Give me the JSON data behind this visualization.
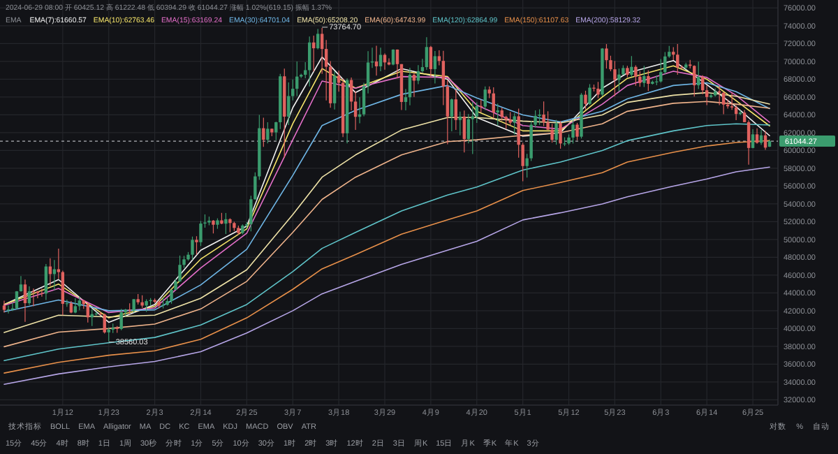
{
  "chart_data": {
    "type": "candlestick",
    "legend_title": "EMA",
    "legend": "top left",
    "grid": true,
    "xlim": [
      "2023-12-28",
      "2024-07-01"
    ],
    "ylim": [
      31400,
      76900
    ],
    "xticks": [
      {
        "value": "2024-01-12",
        "label": "1月12"
      },
      {
        "value": "2024-01-23",
        "label": "1月23"
      },
      {
        "value": "2024-02-03",
        "label": "2月3"
      },
      {
        "value": "2024-02-14",
        "label": "2月14"
      },
      {
        "value": "2024-02-25",
        "label": "2月25"
      },
      {
        "value": "2024-03-07",
        "label": "3月7"
      },
      {
        "value": "2024-03-18",
        "label": "3月18"
      },
      {
        "value": "2024-03-29",
        "label": "3月29"
      },
      {
        "value": "2024-04-09",
        "label": "4月9"
      },
      {
        "value": "2024-04-20",
        "label": "4月20"
      },
      {
        "value": "2024-05-01",
        "label": "5月1"
      },
      {
        "value": "2024-05-12",
        "label": "5月12"
      },
      {
        "value": "2024-05-23",
        "label": "5月23"
      },
      {
        "value": "2024-06-03",
        "label": "6月3"
      },
      {
        "value": "2024-06-14",
        "label": "6月14"
      },
      {
        "value": "2024-06-25",
        "label": "6月25"
      }
    ],
    "yticks": [
      {
        "value": 32000,
        "label": "32000.00"
      },
      {
        "value": 34000,
        "label": "34000.00"
      },
      {
        "value": 36000,
        "label": "36000.00"
      },
      {
        "value": 38000,
        "label": "38000.00"
      },
      {
        "value": 40000,
        "label": "40000.00"
      },
      {
        "value": 42000,
        "label": "42000.00"
      },
      {
        "value": 44000,
        "label": "44000.00"
      },
      {
        "value": 46000,
        "label": "46000.00"
      },
      {
        "value": 48000,
        "label": "48000.00"
      },
      {
        "value": 50000,
        "label": "50000.00"
      },
      {
        "value": 52000,
        "label": "52000.00"
      },
      {
        "value": 54000,
        "label": "54000.00"
      },
      {
        "value": 56000,
        "label": "56000.00"
      },
      {
        "value": 58000,
        "label": "58000.00"
      },
      {
        "value": 60000,
        "label": "60000.00"
      },
      {
        "value": 62000,
        "label": "62000.00"
      },
      {
        "value": 64000,
        "label": "64000.00"
      },
      {
        "value": 66000,
        "label": "66000.00"
      },
      {
        "value": 68000,
        "label": "68000.00"
      },
      {
        "value": 70000,
        "label": "70000.00"
      },
      {
        "value": 72000,
        "label": "72000.00"
      },
      {
        "value": 74000,
        "label": "74000.00"
      },
      {
        "value": 76000,
        "label": "76000.00"
      }
    ],
    "ref_lines": [
      {
        "axis": "y",
        "value": 61044.27,
        "label": "61044.27",
        "color": "#b0b3b8",
        "line_style": "dashed"
      }
    ],
    "annotations": [
      "2024-06-29 08:00  开 60425.12  高 61222.48  低 60394.29  收 61044.27  涨幅 1.02%(619.15)  振幅 1.37%",
      "技术指标",
      "BOLL",
      "EMA",
      "Alligator",
      "MA",
      "DC",
      "KC",
      "EMA",
      "KDJ",
      "MACD",
      "OBV",
      "ATR",
      "对数",
      "%",
      "自动",
      "15分",
      "45分",
      "4时",
      "8时",
      "1日",
      "1周",
      "30秒",
      "分时",
      "1分",
      "5分",
      "10分",
      "30分",
      "1时",
      "2时",
      "3时",
      "12时",
      "2日",
      "3日",
      "周K",
      "15日",
      "月K",
      "季K",
      "年K",
      "3分",
      {
        "text": "73764.70",
        "x": "2024-03-14",
        "y": 73764.7
      },
      {
        "text": "38560.03",
        "x": "2024-01-23",
        "y": 38560.03
      }
    ],
    "x": [
      "2023-12-29",
      "2023-12-30",
      "2023-12-31",
      "2024-01-01",
      "2024-01-02",
      "2024-01-03",
      "2024-01-04",
      "2024-01-05",
      "2024-01-06",
      "2024-01-07",
      "2024-01-08",
      "2024-01-09",
      "2024-01-10",
      "2024-01-11",
      "2024-01-12",
      "2024-01-13",
      "2024-01-14",
      "2024-01-15",
      "2024-01-16",
      "2024-01-17",
      "2024-01-18",
      "2024-01-19",
      "2024-01-20",
      "2024-01-21",
      "2024-01-22",
      "2024-01-23",
      "2024-01-24",
      "2024-01-25",
      "2024-01-26",
      "2024-01-27",
      "2024-01-28",
      "2024-01-29",
      "2024-01-30",
      "2024-01-31",
      "2024-02-01",
      "2024-02-02",
      "2024-02-03",
      "2024-02-04",
      "2024-02-05",
      "2024-02-06",
      "2024-02-07",
      "2024-02-08",
      "2024-02-09",
      "2024-02-10",
      "2024-02-11",
      "2024-02-12",
      "2024-02-13",
      "2024-02-14",
      "2024-02-15",
      "2024-02-16",
      "2024-02-17",
      "2024-02-18",
      "2024-02-19",
      "2024-02-20",
      "2024-02-21",
      "2024-02-22",
      "2024-02-23",
      "2024-02-24",
      "2024-02-25",
      "2024-02-26",
      "2024-02-27",
      "2024-02-28",
      "2024-02-29",
      "2024-03-01",
      "2024-03-02",
      "2024-03-03",
      "2024-03-04",
      "2024-03-05",
      "2024-03-06",
      "2024-03-07",
      "2024-03-08",
      "2024-03-09",
      "2024-03-10",
      "2024-03-11",
      "2024-03-12",
      "2024-03-13",
      "2024-03-14",
      "2024-03-15",
      "2024-03-16",
      "2024-03-17",
      "2024-03-18",
      "2024-03-19",
      "2024-03-20",
      "2024-03-21",
      "2024-03-22",
      "2024-03-23",
      "2024-03-24",
      "2024-03-25",
      "2024-03-26",
      "2024-03-27",
      "2024-03-28",
      "2024-03-29",
      "2024-03-30",
      "2024-03-31",
      "2024-04-01",
      "2024-04-02",
      "2024-04-03",
      "2024-04-04",
      "2024-04-05",
      "2024-04-06",
      "2024-04-07",
      "2024-04-08",
      "2024-04-09",
      "2024-04-10",
      "2024-04-11",
      "2024-04-12",
      "2024-04-13",
      "2024-04-14",
      "2024-04-15",
      "2024-04-16",
      "2024-04-17",
      "2024-04-18",
      "2024-04-19",
      "2024-04-20",
      "2024-04-21",
      "2024-04-22",
      "2024-04-23",
      "2024-04-24",
      "2024-04-25",
      "2024-04-26",
      "2024-04-27",
      "2024-04-28",
      "2024-04-29",
      "2024-04-30",
      "2024-05-01",
      "2024-05-02",
      "2024-05-03",
      "2024-05-04",
      "2024-05-05",
      "2024-05-06",
      "2024-05-07",
      "2024-05-08",
      "2024-05-09",
      "2024-05-10",
      "2024-05-11",
      "2024-05-12",
      "2024-05-13",
      "2024-05-14",
      "2024-05-15",
      "2024-05-16",
      "2024-05-17",
      "2024-05-18",
      "2024-05-19",
      "2024-05-20",
      "2024-05-21",
      "2024-05-22",
      "2024-05-23",
      "2024-05-24",
      "2024-05-25",
      "2024-05-26",
      "2024-05-27",
      "2024-05-28",
      "2024-05-29",
      "2024-05-30",
      "2024-05-31",
      "2024-06-01",
      "2024-06-02",
      "2024-06-03",
      "2024-06-04",
      "2024-06-05",
      "2024-06-06",
      "2024-06-07",
      "2024-06-08",
      "2024-06-09",
      "2024-06-10",
      "2024-06-11",
      "2024-06-12",
      "2024-06-13",
      "2024-06-14",
      "2024-06-15",
      "2024-06-16",
      "2024-06-17",
      "2024-06-18",
      "2024-06-19",
      "2024-06-20",
      "2024-06-21",
      "2024-06-22",
      "2024-06-23",
      "2024-06-24",
      "2024-06-25",
      "2024-06-26",
      "2024-06-27",
      "2024-06-28",
      "2024-06-29"
    ],
    "series": [
      {
        "colors": [
          "#e0625f",
          "#3b9c6e",
          "#3b9c6e",
          "#3b9c6e",
          "#3b9c6e",
          "#e0625f",
          "#3b9c6e",
          "#e0625f",
          "#e0625f",
          "#e0625f",
          "#3b9c6e",
          "#e0625f",
          "#3b9c6e",
          "#e0625f",
          "#e0625f",
          "#3b9c6e",
          "#e0625f",
          "#3b9c6e",
          "#3b9c6e",
          "#e0625f",
          "#e0625f",
          "#3b9c6e",
          "#3b9c6e",
          "#e0625f",
          "#e0625f",
          "#3b9c6e",
          "#3b9c6e",
          "#e0625f",
          "#3b9c6e",
          "#3b9c6e",
          "#e0625f",
          "#3b9c6e",
          "#e0625f",
          "#e0625f",
          "#3b9c6e",
          "#3b9c6e",
          "#e0625f",
          "#e0625f",
          "#3b9c6e",
          "#3b9c6e",
          "#3b9c6e",
          "#3b9c6e",
          "#3b9c6e",
          "#3b9c6e",
          "#3b9c6e",
          "#3b9c6e",
          "#e0625f",
          "#3b9c6e",
          "#3b9c6e",
          "#3b9c6e",
          "#e0625f",
          "#3b9c6e",
          "#e0625f",
          "#3b9c6e",
          "#e0625f",
          "#e0625f",
          "#e0625f",
          "#3b9c6e",
          "#3b9c6e",
          "#3b9c6e",
          "#3b9c6e",
          "#3b9c6e",
          "#e0625f",
          "#3b9c6e",
          "#e0625f",
          "#3b9c6e",
          "#3b9c6e",
          "#e0625f",
          "#3b9c6e",
          "#3b9c6e",
          "#3b9c6e",
          "#3b9c6e",
          "#3b9c6e",
          "#3b9c6e",
          "#e0625f",
          "#3b9c6e",
          "#e0625f",
          "#e0625f",
          "#e0625f",
          "#3b9c6e",
          "#e0625f",
          "#e0625f",
          "#3b9c6e",
          "#e0625f",
          "#e0625f",
          "#3b9c6e",
          "#3b9c6e",
          "#3b9c6e",
          "#3b9c6e",
          "#e0625f",
          "#3b9c6e",
          "#e0625f",
          "#e0625f",
          "#3b9c6e",
          "#e0625f",
          "#e0625f",
          "#3b9c6e",
          "#3b9c6e",
          "#e0625f",
          "#3b9c6e",
          "#3b9c6e",
          "#3b9c6e",
          "#e0625f",
          "#3b9c6e",
          "#e0625f",
          "#e0625f",
          "#e0625f",
          "#3b9c6e",
          "#e0625f",
          "#3b9c6e",
          "#e0625f",
          "#3b9c6e",
          "#3b9c6e",
          "#3b9c6e",
          "#e0625f",
          "#3b9c6e",
          "#e0625f",
          "#e0625f",
          "#3b9c6e",
          "#e0625f",
          "#e0625f",
          "#e0625f",
          "#3b9c6e",
          "#e0625f",
          "#e0625f",
          "#3b9c6e",
          "#3b9c6e",
          "#3b9c6e",
          "#3b9c6e",
          "#e0625f",
          "#e0625f",
          "#e0625f",
          "#3b9c6e",
          "#e0625f",
          "#3b9c6e",
          "#3b9c6e",
          "#3b9c6e",
          "#e0625f",
          "#3b9c6e",
          "#e0625f",
          "#3b9c6e",
          "#e0625f",
          "#e0625f",
          "#3b9c6e",
          "#e0625f",
          "#e0625f",
          "#e0625f",
          "#3b9c6e",
          "#3b9c6e",
          "#e0625f",
          "#3b9c6e",
          "#e0625f",
          "#e0625f",
          "#3b9c6e",
          "#e0625f",
          "#3b9c6e",
          "#3b9c6e",
          "#3b9c6e",
          "#3b9c6e",
          "#3b9c6e",
          "#e0625f",
          "#e0625f",
          "#e0625f",
          "#3b9c6e",
          "#e0625f",
          "#e0625f",
          "#3b9c6e",
          "#e0625f",
          "#e0625f",
          "#3b9c6e",
          "#3b9c6e",
          "#e0625f",
          "#e0625f",
          "#e0625f",
          "#e0625f",
          "#e0625f",
          "#3b9c6e",
          "#e0625f",
          "#e0625f",
          "#3b9c6e",
          "#e0625f",
          "#3b9c6e",
          "#e0625f",
          "#3b9c6e"
        ],
        "ohlc": [
          [
            42580,
            43120,
            41800,
            42100
          ],
          [
            42100,
            42600,
            41700,
            42150
          ],
          [
            42150,
            42890,
            41970,
            42270
          ],
          [
            42270,
            44200,
            42200,
            44180
          ],
          [
            44180,
            45900,
            44150,
            44950
          ],
          [
            44950,
            45500,
            40750,
            42850
          ],
          [
            42850,
            44730,
            42630,
            44180
          ],
          [
            44180,
            44500,
            42500,
            44160
          ],
          [
            44160,
            44230,
            43400,
            43970
          ],
          [
            43970,
            44490,
            43580,
            43930
          ],
          [
            43930,
            47250,
            43200,
            46970
          ],
          [
            46970,
            47900,
            44800,
            46120
          ],
          [
            46120,
            47700,
            44300,
            46660
          ],
          [
            46660,
            48970,
            45600,
            46340
          ],
          [
            46340,
            46500,
            41500,
            42780
          ],
          [
            42780,
            43250,
            42440,
            42840
          ],
          [
            42840,
            43080,
            41720,
            41800
          ],
          [
            41800,
            43400,
            41720,
            42510
          ],
          [
            42510,
            43580,
            42050,
            43150
          ],
          [
            43150,
            43200,
            42200,
            42740
          ],
          [
            42740,
            42930,
            40680,
            41260
          ],
          [
            41260,
            42190,
            40280,
            41620
          ],
          [
            41620,
            41870,
            41460,
            41670
          ],
          [
            41670,
            41870,
            41500,
            41580
          ],
          [
            41580,
            41680,
            39450,
            39570
          ],
          [
            39570,
            40130,
            38560.03,
            39880
          ],
          [
            39880,
            40560,
            39490,
            40080
          ],
          [
            40080,
            40280,
            39520,
            39950
          ],
          [
            39950,
            42200,
            39820,
            41820
          ],
          [
            41820,
            42200,
            41400,
            42120
          ],
          [
            42120,
            42840,
            41620,
            42030
          ],
          [
            42030,
            43300,
            41800,
            43300
          ],
          [
            43300,
            43880,
            42700,
            42950
          ],
          [
            42950,
            43740,
            42320,
            42580
          ],
          [
            42580,
            43280,
            41880,
            43080
          ],
          [
            43080,
            43420,
            42590,
            43200
          ],
          [
            43200,
            43380,
            42880,
            43010
          ],
          [
            43010,
            43120,
            42260,
            42580
          ],
          [
            42580,
            43490,
            42260,
            42660
          ],
          [
            42660,
            43400,
            42580,
            43090
          ],
          [
            43090,
            44370,
            42790,
            44340
          ],
          [
            44340,
            45600,
            44340,
            45290
          ],
          [
            45290,
            48200,
            45250,
            47150
          ],
          [
            47150,
            48170,
            46800,
            47770
          ],
          [
            47770,
            48590,
            47630,
            48290
          ],
          [
            48290,
            50330,
            47720,
            49960
          ],
          [
            49960,
            50370,
            48300,
            49700
          ],
          [
            49700,
            52080,
            49270,
            51790
          ],
          [
            51790,
            52820,
            51330,
            51910
          ],
          [
            51910,
            52570,
            51600,
            52120
          ],
          [
            52120,
            52190,
            50680,
            51660
          ],
          [
            51660,
            52380,
            51200,
            52150
          ],
          [
            52150,
            52990,
            51720,
            51780
          ],
          [
            51780,
            52980,
            50620,
            52280
          ],
          [
            52280,
            52380,
            50820,
            51850
          ],
          [
            51850,
            52000,
            50950,
            51300
          ],
          [
            51300,
            51560,
            50550,
            50730
          ],
          [
            50730,
            51690,
            50580,
            51570
          ],
          [
            51570,
            51950,
            51290,
            51730
          ],
          [
            51730,
            54910,
            50920,
            54520
          ],
          [
            54520,
            57550,
            54460,
            57090
          ],
          [
            57090,
            64000,
            56700,
            62500
          ],
          [
            62500,
            63680,
            60400,
            61200
          ],
          [
            61200,
            63180,
            60800,
            62440
          ],
          [
            62440,
            62460,
            61600,
            62030
          ],
          [
            62030,
            63230,
            61150,
            63170
          ],
          [
            63170,
            68600,
            62400,
            68330
          ],
          [
            68330,
            69200,
            59200,
            63800
          ],
          [
            63800,
            67640,
            62850,
            66110
          ],
          [
            66110,
            67980,
            65620,
            66930
          ],
          [
            66930,
            69990,
            66120,
            68300
          ],
          [
            68300,
            68620,
            68140,
            68500
          ],
          [
            68500,
            69920,
            68120,
            69020
          ],
          [
            69020,
            72800,
            67200,
            72130
          ],
          [
            72130,
            72900,
            68850,
            71480
          ],
          [
            71480,
            73650,
            71350,
            73100
          ],
          [
            73100,
            73764.7,
            68600,
            71400
          ],
          [
            71400,
            72400,
            65630,
            69400
          ],
          [
            69400,
            70030,
            64800,
            65300
          ],
          [
            65300,
            68900,
            64600,
            68400
          ],
          [
            68400,
            68950,
            66600,
            67600
          ],
          [
            67600,
            68100,
            61500,
            61930
          ],
          [
            61930,
            68100,
            60800,
            67910
          ],
          [
            67910,
            68200,
            64500,
            65490
          ],
          [
            65490,
            66650,
            62300,
            63780
          ],
          [
            63780,
            65980,
            63050,
            64060
          ],
          [
            64060,
            67600,
            63830,
            67230
          ],
          [
            67230,
            71150,
            66400,
            69880
          ],
          [
            69880,
            71550,
            69280,
            69990
          ],
          [
            69990,
            71770,
            68400,
            69450
          ],
          [
            69450,
            71550,
            68900,
            70740
          ],
          [
            70740,
            70900,
            69080,
            69890
          ],
          [
            69890,
            70340,
            69560,
            69650
          ],
          [
            69650,
            71370,
            69560,
            71330
          ],
          [
            71330,
            71340,
            68100,
            69700
          ],
          [
            69700,
            69700,
            64550,
            65450
          ],
          [
            65450,
            66900,
            64500,
            65980
          ],
          [
            65980,
            69290,
            65070,
            68500
          ],
          [
            68500,
            68720,
            66010,
            67840
          ],
          [
            67840,
            69580,
            67450,
            68900
          ],
          [
            68900,
            70300,
            68780,
            69360
          ],
          [
            69360,
            72720,
            69050,
            71620
          ],
          [
            71620,
            71750,
            68200,
            69140
          ],
          [
            69140,
            71170,
            67520,
            70590
          ],
          [
            70590,
            71260,
            69560,
            70060
          ],
          [
            70060,
            71200,
            65100,
            67190
          ],
          [
            67190,
            67930,
            60700,
            63820
          ],
          [
            63820,
            65830,
            62160,
            65740
          ],
          [
            65740,
            66880,
            62300,
            63420
          ],
          [
            63420,
            64360,
            61700,
            63810
          ],
          [
            63810,
            64480,
            59770,
            61280
          ],
          [
            61280,
            64100,
            60800,
            63510
          ],
          [
            63510,
            65470,
            59600,
            63840
          ],
          [
            63840,
            65400,
            63100,
            64990
          ],
          [
            64990,
            65720,
            64280,
            64930
          ],
          [
            64930,
            67200,
            64520,
            66840
          ],
          [
            66840,
            67200,
            65880,
            66410
          ],
          [
            66410,
            67090,
            63600,
            64280
          ],
          [
            64280,
            65270,
            62800,
            64500
          ],
          [
            64500,
            64800,
            63350,
            63770
          ],
          [
            63770,
            63900,
            62400,
            63460
          ],
          [
            63460,
            64300,
            62830,
            63120
          ],
          [
            63120,
            64200,
            61800,
            63840
          ],
          [
            63840,
            64700,
            59190,
            60640
          ],
          [
            60640,
            60850,
            56550,
            58250
          ],
          [
            58250,
            59620,
            56950,
            59120
          ],
          [
            59120,
            63300,
            58820,
            62890
          ],
          [
            62890,
            64500,
            62570,
            63890
          ],
          [
            63890,
            64630,
            62870,
            64030
          ],
          [
            64030,
            65500,
            62740,
            63160
          ],
          [
            63160,
            64400,
            62300,
            62330
          ],
          [
            62330,
            62980,
            60880,
            61190
          ],
          [
            61190,
            63440,
            60650,
            63050
          ],
          [
            63050,
            63300,
            60200,
            60790
          ],
          [
            60790,
            61480,
            60490,
            60790
          ],
          [
            60790,
            61800,
            60630,
            61450
          ],
          [
            61450,
            63440,
            60780,
            62900
          ],
          [
            62900,
            63100,
            61150,
            61550
          ],
          [
            61550,
            66450,
            61340,
            66260
          ],
          [
            66260,
            66710,
            64600,
            65230
          ],
          [
            65230,
            67450,
            65120,
            67050
          ],
          [
            67050,
            67400,
            66630,
            66940
          ],
          [
            66940,
            67700,
            65880,
            66280
          ],
          [
            66280,
            71500,
            66080,
            71450
          ],
          [
            71450,
            71950,
            69200,
            70140
          ],
          [
            70140,
            70640,
            68900,
            69120
          ],
          [
            69120,
            70050,
            66100,
            67930
          ],
          [
            67930,
            69200,
            66620,
            68530
          ],
          [
            68530,
            69570,
            68500,
            69260
          ],
          [
            69260,
            69510,
            68240,
            68500
          ],
          [
            68500,
            70600,
            68250,
            69390
          ],
          [
            69390,
            69570,
            67280,
            68290
          ],
          [
            68290,
            68900,
            67150,
            67580
          ],
          [
            67580,
            69500,
            67130,
            68350
          ],
          [
            68350,
            69000,
            66680,
            67490
          ],
          [
            67490,
            67850,
            67400,
            67710
          ],
          [
            67710,
            68420,
            67320,
            67750
          ],
          [
            67750,
            70280,
            67620,
            68800
          ],
          [
            68800,
            71050,
            68570,
            70560
          ],
          [
            70560,
            71750,
            70400,
            71080
          ],
          [
            71080,
            71600,
            70150,
            70760
          ],
          [
            70760,
            71950,
            68500,
            69340
          ],
          [
            69340,
            69560,
            69210,
            69310
          ],
          [
            69310,
            69850,
            69120,
            69650
          ],
          [
            69650,
            70170,
            69220,
            69500
          ],
          [
            69500,
            69560,
            66060,
            67320
          ],
          [
            67320,
            69980,
            66900,
            68240
          ],
          [
            68240,
            68450,
            66300,
            66760
          ],
          [
            66760,
            67300,
            65090,
            66010
          ],
          [
            66010,
            66400,
            65870,
            66190
          ],
          [
            66190,
            66980,
            66060,
            66640
          ],
          [
            66640,
            67250,
            65100,
            66490
          ],
          [
            66490,
            66570,
            64080,
            65150
          ],
          [
            65150,
            65730,
            64700,
            64960
          ],
          [
            64960,
            66480,
            64560,
            64830
          ],
          [
            64830,
            65070,
            63400,
            64100
          ],
          [
            64100,
            64530,
            63950,
            64250
          ],
          [
            64250,
            64540,
            63180,
            63180
          ],
          [
            63180,
            63380,
            58400,
            60280
          ],
          [
            60280,
            62380,
            60240,
            61810
          ],
          [
            61810,
            62480,
            60750,
            60860
          ],
          [
            60860,
            62300,
            60630,
            61700
          ],
          [
            61700,
            62200,
            60080,
            60320
          ],
          [
            60425.12,
            61222.48,
            60394.29,
            61044.27
          ]
        ]
      },
      {
        "type": "line",
        "name": "EMA(7):61660.57",
        "color": "#f2f2f2",
        "x": [
          "2023-12-29",
          "2024-01-11",
          "2024-01-23",
          "2024-02-03",
          "2024-02-14",
          "2024-02-25",
          "2024-03-07",
          "2024-03-14",
          "2024-03-22",
          "2024-04-02",
          "2024-04-13",
          "2024-04-20",
          "2024-05-01",
          "2024-05-10",
          "2024-05-20",
          "2024-05-26",
          "2024-06-06",
          "2024-06-14",
          "2024-06-21",
          "2024-06-29"
        ],
        "values": [
          42700,
          45500,
          40700,
          42700,
          48800,
          51500,
          64800,
          70500,
          66500,
          69200,
          68000,
          63700,
          61600,
          62000,
          67000,
          68700,
          70100,
          67400,
          64900,
          61660
        ]
      },
      {
        "type": "line",
        "name": "EMA(10):62763.46",
        "color": "#f5e46a",
        "x": [
          "2023-12-29",
          "2024-01-11",
          "2024-01-23",
          "2024-02-03",
          "2024-02-14",
          "2024-02-25",
          "2024-03-07",
          "2024-03-14",
          "2024-03-22",
          "2024-04-02",
          "2024-04-13",
          "2024-04-20",
          "2024-05-01",
          "2024-05-10",
          "2024-05-20",
          "2024-05-26",
          "2024-06-06",
          "2024-06-14",
          "2024-06-21",
          "2024-06-29"
        ],
        "values": [
          42700,
          45000,
          41200,
          42500,
          47800,
          51200,
          63000,
          69200,
          67000,
          68900,
          68300,
          64400,
          62200,
          62200,
          66000,
          68100,
          69500,
          68000,
          65600,
          62760
        ]
      },
      {
        "type": "line",
        "name": "EMA(15):63169.24",
        "color": "#e46fc9",
        "x": [
          "2023-12-29",
          "2024-01-11",
          "2024-01-23",
          "2024-02-03",
          "2024-02-14",
          "2024-02-25",
          "2024-03-07",
          "2024-03-14",
          "2024-03-22",
          "2024-04-02",
          "2024-04-13",
          "2024-04-20",
          "2024-05-01",
          "2024-05-10",
          "2024-05-20",
          "2024-05-26",
          "2024-06-06",
          "2024-06-14",
          "2024-06-21",
          "2024-06-29"
        ],
        "values": [
          42600,
          44500,
          41800,
          42300,
          46800,
          50700,
          61200,
          67800,
          67000,
          68300,
          68200,
          65100,
          62800,
          62400,
          65200,
          67300,
          68900,
          68200,
          66200,
          63170
        ]
      },
      {
        "type": "line",
        "name": "EMA(30):64701.04",
        "color": "#6fb6e6",
        "x": [
          "2023-12-29",
          "2024-01-11",
          "2024-01-23",
          "2024-02-03",
          "2024-02-14",
          "2024-02-25",
          "2024-03-07",
          "2024-03-14",
          "2024-03-22",
          "2024-04-02",
          "2024-04-13",
          "2024-04-20",
          "2024-05-01",
          "2024-05-10",
          "2024-05-20",
          "2024-05-26",
          "2024-06-06",
          "2024-06-14",
          "2024-06-21",
          "2024-06-29"
        ],
        "values": [
          41900,
          43200,
          42000,
          42100,
          44900,
          48900,
          57200,
          62800,
          64500,
          66300,
          67300,
          65900,
          64000,
          63200,
          64400,
          65800,
          67300,
          67600,
          66600,
          64700
        ]
      },
      {
        "type": "line",
        "name": "EMA(50):65208.20",
        "color": "#efe3a8",
        "x": [
          "2023-12-29",
          "2024-01-11",
          "2024-01-23",
          "2024-02-03",
          "2024-02-14",
          "2024-02-25",
          "2024-03-07",
          "2024-03-14",
          "2024-03-22",
          "2024-04-02",
          "2024-04-13",
          "2024-04-20",
          "2024-05-01",
          "2024-05-10",
          "2024-05-20",
          "2024-05-26",
          "2024-06-06",
          "2024-06-14",
          "2024-06-21",
          "2024-06-29"
        ],
        "values": [
          39550,
          41500,
          41300,
          41500,
          43400,
          46600,
          52800,
          57000,
          59500,
          62300,
          63700,
          63700,
          63300,
          63100,
          64000,
          65400,
          66200,
          66500,
          66100,
          65210
        ]
      },
      {
        "type": "line",
        "name": "EMA(60):64743.99",
        "color": "#f0b48c",
        "x": [
          "2023-12-29",
          "2024-01-11",
          "2024-01-23",
          "2024-02-03",
          "2024-02-14",
          "2024-02-25",
          "2024-03-07",
          "2024-03-14",
          "2024-03-22",
          "2024-04-02",
          "2024-04-13",
          "2024-04-20",
          "2024-05-01",
          "2024-05-10",
          "2024-05-20",
          "2024-05-26",
          "2024-06-06",
          "2024-06-14",
          "2024-06-21",
          "2024-06-29"
        ],
        "values": [
          37960,
          39600,
          40000,
          40500,
          42200,
          45300,
          50800,
          54500,
          57000,
          59500,
          61000,
          61200,
          61700,
          62000,
          63000,
          64400,
          65300,
          65500,
          65200,
          64740
        ]
      },
      {
        "type": "line",
        "name": "EMA(120):62864.99",
        "color": "#5fc4c9",
        "x": [
          "2023-12-29",
          "2024-01-11",
          "2024-01-23",
          "2024-02-03",
          "2024-02-14",
          "2024-02-25",
          "2024-03-07",
          "2024-03-14",
          "2024-03-22",
          "2024-04-02",
          "2024-04-13",
          "2024-04-20",
          "2024-05-01",
          "2024-05-10",
          "2024-05-20",
          "2024-05-26",
          "2024-06-06",
          "2024-06-14",
          "2024-06-21",
          "2024-06-29"
        ],
        "values": [
          36400,
          37700,
          38400,
          39000,
          40400,
          42700,
          46400,
          49000,
          50800,
          53200,
          55000,
          55900,
          57800,
          58700,
          60000,
          61100,
          62200,
          62800,
          63000,
          62860
        ]
      },
      {
        "type": "line",
        "name": "EMA(150):61107.63",
        "color": "#e8904a",
        "x": [
          "2023-12-29",
          "2024-01-11",
          "2024-01-23",
          "2024-02-03",
          "2024-02-14",
          "2024-02-25",
          "2024-03-07",
          "2024-03-14",
          "2024-03-22",
          "2024-04-02",
          "2024-04-13",
          "2024-04-20",
          "2024-05-01",
          "2024-05-10",
          "2024-05-20",
          "2024-05-26",
          "2024-06-06",
          "2024-06-14",
          "2024-06-21",
          "2024-06-29"
        ],
        "values": [
          35000,
          36200,
          37000,
          37500,
          38800,
          41200,
          44400,
          46700,
          48300,
          50600,
          52200,
          53200,
          55500,
          56400,
          57500,
          58700,
          59800,
          60500,
          60900,
          61110
        ]
      },
      {
        "type": "line",
        "name": "EMA(200):58129.32",
        "color": "#b7a6e8",
        "x": [
          "2023-12-29",
          "2024-01-11",
          "2024-01-23",
          "2024-02-03",
          "2024-02-14",
          "2024-02-25",
          "2024-03-07",
          "2024-03-14",
          "2024-03-22",
          "2024-04-02",
          "2024-04-13",
          "2024-04-20",
          "2024-05-01",
          "2024-05-10",
          "2024-05-20",
          "2024-05-26",
          "2024-06-06",
          "2024-06-14",
          "2024-06-21",
          "2024-06-29"
        ],
        "values": [
          33740,
          34900,
          35700,
          36300,
          37400,
          39500,
          42000,
          43900,
          45300,
          47200,
          48800,
          49800,
          52200,
          53000,
          54000,
          54800,
          56000,
          56800,
          57600,
          58130
        ]
      }
    ]
  }
}
